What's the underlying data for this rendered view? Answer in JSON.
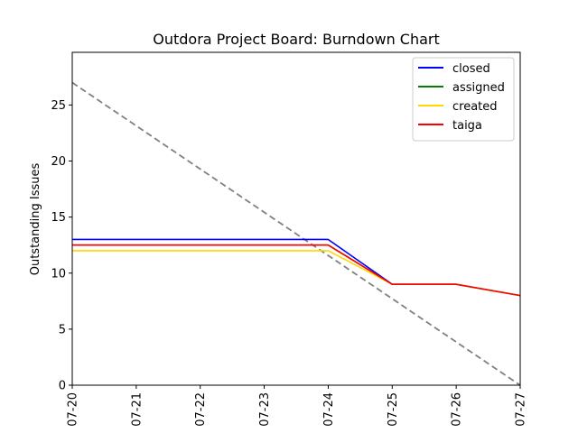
{
  "chart_data": {
    "type": "line",
    "title": "Outdora Project Board: Burndown Chart",
    "xlabel": "",
    "ylabel": "Outstanding Issues",
    "categories": [
      "07-20",
      "07-21",
      "07-22",
      "07-23",
      "07-24",
      "07-25",
      "07-26",
      "07-27"
    ],
    "ylim": [
      0,
      29.7
    ],
    "yticks": [
      0,
      5,
      10,
      15,
      20,
      25
    ],
    "ytick_labels": [
      "0",
      "5",
      "10",
      "15",
      "20",
      "25"
    ],
    "grid": false,
    "legend_position": "top-right",
    "series": [
      {
        "name": "closed",
        "color": "#0000ff",
        "values": [
          13,
          13,
          13,
          13,
          13,
          9,
          9,
          8
        ]
      },
      {
        "name": "assigned",
        "color": "#008000",
        "values": [
          12.5,
          12.5,
          12.5,
          12.5,
          12.5,
          9,
          9,
          8
        ]
      },
      {
        "name": "created",
        "color": "#ffd700",
        "values": [
          12,
          12,
          12,
          12,
          12,
          9,
          9,
          8
        ]
      },
      {
        "name": "taiga",
        "color": "#ff0000",
        "values": [
          12.5,
          12.5,
          12.5,
          12.5,
          12.5,
          9,
          9,
          8
        ]
      }
    ],
    "ideal_line": {
      "color": "#808080",
      "style": "dashed",
      "values": [
        27,
        0
      ]
    }
  }
}
